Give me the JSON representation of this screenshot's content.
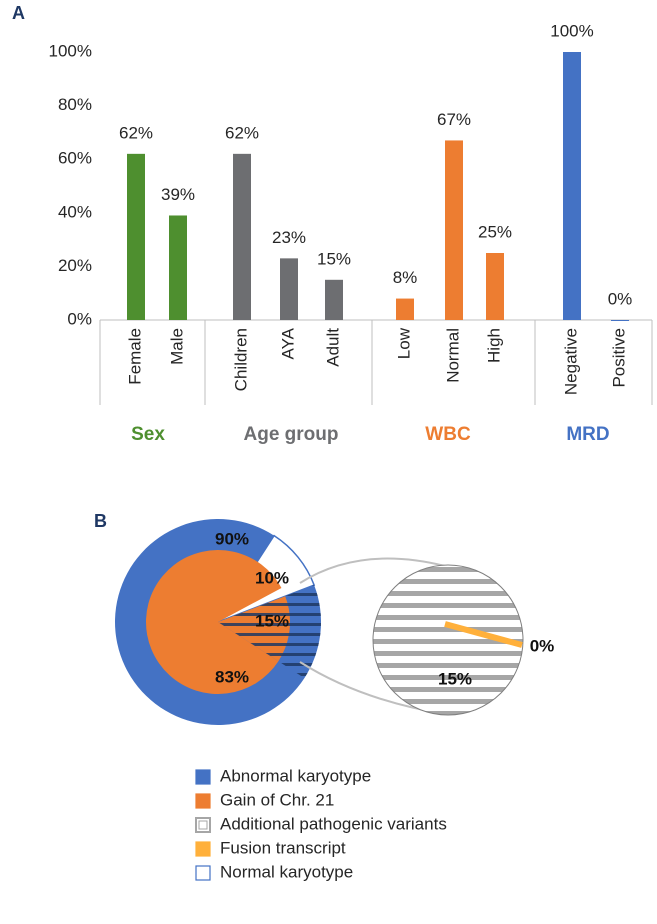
{
  "chart_data": [
    {
      "label": "A",
      "type": "bar",
      "groups": [
        {
          "name": "Sex",
          "color": "#4e8f2f",
          "categories": [
            "Female",
            "Male"
          ],
          "values": [
            62,
            39
          ],
          "value_labels": [
            "62%",
            "39%"
          ]
        },
        {
          "name": "Age group",
          "color": "#6d6e71",
          "categories": [
            "Children",
            "AYA",
            "Adult"
          ],
          "values": [
            62,
            23,
            15
          ],
          "value_labels": [
            "62%",
            "23%",
            "15%"
          ]
        },
        {
          "name": "WBC",
          "color": "#ed7d31",
          "categories": [
            "Low",
            "Normal",
            "High"
          ],
          "values": [
            8,
            67,
            25
          ],
          "value_labels": [
            "8%",
            "67%",
            "25%"
          ]
        },
        {
          "name": "MRD",
          "color": "#4472c4",
          "categories": [
            "Negative",
            "Positive"
          ],
          "values": [
            100,
            0
          ],
          "value_labels": [
            "100%",
            "0%"
          ]
        }
      ],
      "ylim": [
        0,
        100
      ],
      "yticks": [
        {
          "value": 0,
          "label": "0%"
        },
        {
          "value": 20,
          "label": "20%"
        },
        {
          "value": 40,
          "label": "40%"
        },
        {
          "value": 60,
          "label": "60%"
        },
        {
          "value": 80,
          "label": "80%"
        },
        {
          "value": 100,
          "label": "100%"
        }
      ],
      "grid": false
    },
    {
      "label": "B",
      "type": "pie-of-pie",
      "series": [
        {
          "name": "Abnormal karyotype",
          "color": "#4472c4",
          "rings": [
            "outer"
          ],
          "values": [
            90
          ],
          "value_labels": [
            "90%"
          ]
        },
        {
          "name": "Gain of Chr. 21",
          "color": "#ed7d31",
          "rings": [
            "inner"
          ],
          "values": [
            83
          ],
          "value_labels": [
            "83%"
          ]
        },
        {
          "name": "Additional pathogenic variants",
          "color": "#a6a6a6",
          "hatch": true,
          "rings": [
            "inner",
            "detail"
          ],
          "values": [
            15,
            15
          ],
          "value_labels": [
            "15%",
            "15%"
          ]
        },
        {
          "name": "Fusion transcript",
          "color": "#ffb03b",
          "rings": [
            "detail"
          ],
          "values": [
            0
          ],
          "value_labels": [
            "0%"
          ]
        },
        {
          "name": "Normal karyotype",
          "color": "#ffffff",
          "border": "#4472c4",
          "rings": [
            "outer"
          ],
          "values": [
            10
          ],
          "value_labels": [
            "10%"
          ]
        }
      ]
    }
  ]
}
